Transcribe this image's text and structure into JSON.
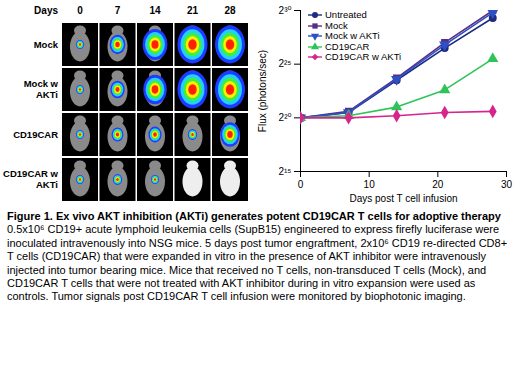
{
  "chart_data": {
    "type": "line",
    "x_label": "Days post T cell infusion",
    "y_label": "Flux (photons/sec)",
    "x": [
      0,
      7,
      14,
      21,
      28
    ],
    "xlim": [
      0,
      30
    ],
    "xticks": [
      0,
      10,
      20,
      30
    ],
    "log": "y",
    "ylim": [
      32768,
      1073741824
    ],
    "yticks": [
      {
        "value": 32768,
        "label": "2¹⁵"
      },
      {
        "value": 1048576,
        "label": "2²⁰"
      },
      {
        "value": 33554432,
        "label": "2²⁵"
      },
      {
        "value": 1073741824,
        "label": "2³⁰"
      }
    ],
    "legend": "top-left",
    "series": [
      {
        "name": "Untreated",
        "color": "#1c2a80",
        "marker": "circle",
        "values": [
          1048576,
          1482910,
          11863283,
          94906266,
          660940000
        ]
      },
      {
        "name": "Mock",
        "color": "#5a2d82",
        "marker": "square",
        "values": [
          1048576,
          1589300,
          13627300,
          134217728,
          1073741824
        ]
      },
      {
        "name": "Mock w AKTi",
        "color": "#2f4fc4",
        "marker": "triangle-down",
        "values": [
          1048576,
          1482910,
          12714600,
          116842000,
          934740000
        ]
      },
      {
        "name": "CD19CAR",
        "color": "#2fc45a",
        "marker": "triangle",
        "values": [
          1048576,
          1204500,
          2097152,
          6357300,
          47453100
        ]
      },
      {
        "name": "CD19CAR w AKTi",
        "color": "#d6258c",
        "marker": "diamond",
        "values": [
          1048576,
          1048576,
          1204500,
          1482910,
          1589300
        ]
      }
    ]
  },
  "images": {
    "header": "Days",
    "columns": [
      0,
      7,
      14,
      21,
      28
    ],
    "rows": [
      "Mock",
      "Mock w AKTi",
      "CD19CAR",
      "CD19CAR w AKTi"
    ],
    "signal": [
      [
        0.15,
        0.45,
        0.8,
        1,
        1
      ],
      [
        0.15,
        0.4,
        0.75,
        1,
        1
      ],
      [
        0.15,
        0.3,
        0.35,
        0.2,
        0.6
      ],
      [
        0.15,
        0.2,
        0.15,
        0,
        0
      ]
    ]
  },
  "caption": {
    "label": "Figure 1.",
    "title": "Ex vivo AKT inhibition (AKTi) generates potent CD19CAR T cells for adoptive therapy",
    "text": "0.5x10⁶ CD19+ acute lymphoid leukemia cells (SupB15) engineered to express firefly luciferase were inoculated intravenously into NSG mice. 5 days post tumor engraftment, 2x10⁶ CD19 re-directed CD8+ T cells (CD19CAR) that were expanded in vitro in the presence of AKT inhibitor were intravenously injected into tumor bearing mice. Mice that received no T cells, non-transduced T cells (Mock), and CD19CAR T cells that were not treated with AKT inhibitor during in vitro expansion were used as controls. Tumor signals post CD19CAR T cell infusion were monitored by biophotonic imaging."
  }
}
